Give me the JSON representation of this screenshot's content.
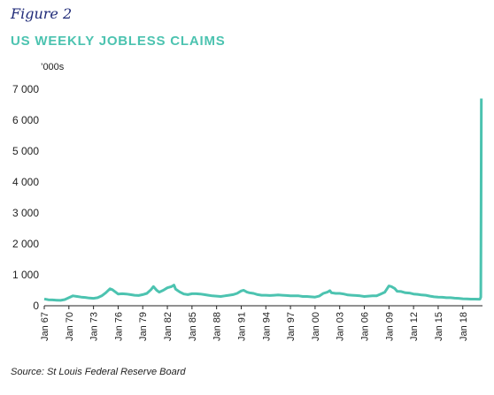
{
  "figure_label": "Figure 2",
  "source": "Source: St Louis Federal Reserve Board",
  "colors": {
    "line": "#4cc3b0",
    "title": "#4cc3b0",
    "figure": "#1f2a78",
    "axis": "#222222"
  },
  "chart_data": {
    "type": "line",
    "title": "US WEEKLY JOBLESS CLAIMS",
    "ylabel": "’000s",
    "xlabel": "",
    "ylim": [
      0,
      7000
    ],
    "yticks": [
      0,
      1000,
      2000,
      3000,
      4000,
      5000,
      6000,
      7000
    ],
    "ytick_labels": [
      "0",
      "1 000",
      "2 000",
      "3 000",
      "4 000",
      "5 000",
      "6 000",
      "7 000"
    ],
    "xlim": [
      1967.0,
      2020.4
    ],
    "xticks": [
      1967,
      1970,
      1973,
      1976,
      1979,
      1982,
      1985,
      1988,
      1991,
      1994,
      1997,
      2000,
      2003,
      2006,
      2009,
      2012,
      2015,
      2018
    ],
    "xtick_labels": [
      "Jan 67",
      "Jan 70",
      "Jan 73",
      "Jan 76",
      "Jan 79",
      "Jan 82",
      "Jan 85",
      "Jan 88",
      "Jan 91",
      "Jan 94",
      "Jan 97",
      "Jan 00",
      "Jan 03",
      "Jan 06",
      "Jan 09",
      "Jan 12",
      "Jan 15",
      "Jan 18"
    ],
    "grid": false,
    "series": [
      {
        "x": [
          1967.0,
          1967.5,
          1968.0,
          1968.5,
          1969.0,
          1969.5,
          1970.0,
          1970.5,
          1971.0,
          1971.5,
          1972.0,
          1972.5,
          1973.0,
          1973.5,
          1974.0,
          1974.5,
          1975.0,
          1975.3,
          1975.7,
          1976.0,
          1976.5,
          1977.0,
          1977.5,
          1978.0,
          1978.5,
          1979.0,
          1979.5,
          1980.0,
          1980.3,
          1980.7,
          1981.0,
          1981.5,
          1982.0,
          1982.5,
          1982.8,
          1983.0,
          1983.5,
          1984.0,
          1984.5,
          1985.0,
          1985.5,
          1986.0,
          1986.5,
          1987.0,
          1987.5,
          1988.0,
          1988.5,
          1989.0,
          1989.5,
          1990.0,
          1990.5,
          1991.0,
          1991.3,
          1991.7,
          1992.0,
          1992.5,
          1993.0,
          1993.5,
          1994.0,
          1994.5,
          1995.0,
          1995.5,
          1996.0,
          1996.5,
          1997.0,
          1997.5,
          1998.0,
          1998.5,
          1999.0,
          1999.5,
          2000.0,
          2000.5,
          2001.0,
          2001.5,
          2001.8,
          2002.0,
          2002.5,
          2003.0,
          2003.5,
          2004.0,
          2004.5,
          2005.0,
          2005.5,
          2006.0,
          2006.5,
          2007.0,
          2007.5,
          2008.0,
          2008.5,
          2009.0,
          2009.3,
          2009.7,
          2010.0,
          2010.5,
          2011.0,
          2011.5,
          2012.0,
          2012.5,
          2013.0,
          2013.5,
          2014.0,
          2014.5,
          2015.0,
          2015.5,
          2016.0,
          2016.5,
          2017.0,
          2017.5,
          2018.0,
          2018.5,
          2019.0,
          2019.5,
          2020.0,
          2020.1,
          2020.2,
          2020.23,
          2020.26
        ],
        "values": [
          220,
          195,
          190,
          180,
          175,
          200,
          260,
          320,
          300,
          280,
          270,
          250,
          240,
          260,
          320,
          420,
          550,
          520,
          440,
          380,
          390,
          380,
          360,
          340,
          330,
          360,
          400,
          520,
          620,
          500,
          440,
          500,
          580,
          620,
          670,
          540,
          450,
          380,
          360,
          390,
          390,
          380,
          360,
          340,
          320,
          310,
          300,
          320,
          340,
          360,
          400,
          480,
          500,
          440,
          420,
          400,
          360,
          340,
          340,
          330,
          340,
          350,
          340,
          330,
          320,
          320,
          320,
          300,
          300,
          290,
          280,
          310,
          400,
          440,
          490,
          420,
          400,
          400,
          380,
          350,
          340,
          330,
          320,
          300,
          310,
          320,
          320,
          380,
          440,
          640,
          620,
          560,
          470,
          460,
          420,
          410,
          380,
          370,
          350,
          340,
          310,
          290,
          280,
          275,
          260,
          260,
          245,
          240,
          225,
          220,
          215,
          215,
          210,
          215,
          280,
          3300,
          6700
        ]
      }
    ]
  }
}
